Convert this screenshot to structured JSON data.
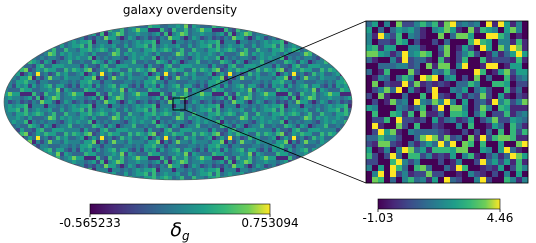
{
  "title": "galaxy overdensity",
  "map_colorbar": {
    "label": "δ",
    "label_sub": "g",
    "ticks": [
      -0.565233,
      0.753094
    ]
  },
  "zoom_colorbar": {
    "ticks": [
      -1.03,
      4.46
    ]
  }
}
